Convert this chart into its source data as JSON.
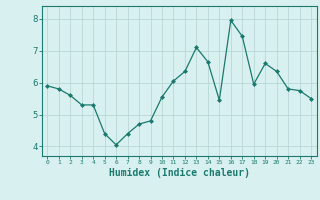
{
  "x": [
    0,
    1,
    2,
    3,
    4,
    5,
    6,
    7,
    8,
    9,
    10,
    11,
    12,
    13,
    14,
    15,
    16,
    17,
    18,
    19,
    20,
    21,
    22,
    23
  ],
  "y": [
    5.9,
    5.8,
    5.6,
    5.3,
    5.3,
    4.4,
    4.05,
    4.4,
    4.7,
    4.8,
    5.55,
    6.05,
    6.35,
    7.1,
    6.65,
    5.45,
    7.95,
    7.45,
    5.95,
    6.6,
    6.35,
    5.8,
    5.75,
    5.5
  ],
  "line_color": "#1a7a6e",
  "marker": "D",
  "marker_size": 2.0,
  "bg_color": "#d9f0f0",
  "grid_color": "#b8d8d8",
  "axis_color": "#1a7a6e",
  "tick_color": "#1a7a6e",
  "xlabel": "Humidex (Indice chaleur)",
  "xlabel_fontsize": 7,
  "ylabel_ticks": [
    4,
    5,
    6,
    7,
    8
  ],
  "xlim": [
    -0.5,
    23.5
  ],
  "ylim": [
    3.7,
    8.4
  ]
}
